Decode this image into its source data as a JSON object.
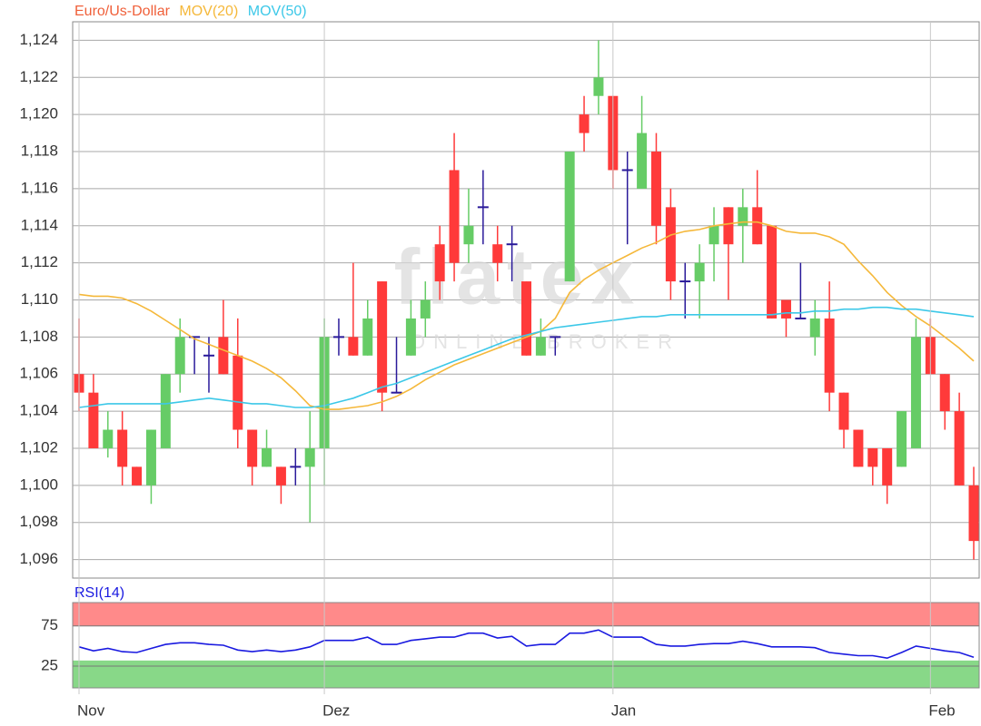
{
  "chart_data": [
    {
      "type": "candlestick",
      "watermark": {
        "title": "flatex",
        "subtitle": "ONLINE BROKER"
      },
      "categories": [
        "Nov",
        null,
        null,
        null,
        null,
        null,
        null,
        null,
        null,
        null,
        null,
        null,
        null,
        null,
        null,
        null,
        null,
        "Dez",
        null,
        null,
        null,
        null,
        null,
        null,
        null,
        null,
        null,
        null,
        null,
        null,
        null,
        null,
        null,
        null,
        null,
        null,
        null,
        "Jan",
        null,
        null,
        null,
        null,
        null,
        null,
        null,
        null,
        null,
        null,
        null,
        null,
        null,
        null,
        null,
        null,
        null,
        null,
        null,
        null,
        null,
        "Feb",
        null,
        null,
        null
      ],
      "ylim": [
        1.095,
        1.125
      ],
      "yticks": [
        {
          "value": 1.096,
          "label": "1,096"
        },
        {
          "value": 1.098,
          "label": "1,098"
        },
        {
          "value": 1.1,
          "label": "1,100"
        },
        {
          "value": 1.102,
          "label": "1,102"
        },
        {
          "value": 1.104,
          "label": "1,104"
        },
        {
          "value": 1.106,
          "label": "1,106"
        },
        {
          "value": 1.108,
          "label": "1,108"
        },
        {
          "value": 1.11,
          "label": "1,110"
        },
        {
          "value": 1.112,
          "label": "1,112"
        },
        {
          "value": 1.114,
          "label": "1,114"
        },
        {
          "value": 1.116,
          "label": "1,116"
        },
        {
          "value": 1.118,
          "label": "1,118"
        },
        {
          "value": 1.12,
          "label": "1,120"
        },
        {
          "value": 1.122,
          "label": "1,122"
        },
        {
          "value": 1.124,
          "label": "1,124"
        }
      ],
      "grid": true,
      "series": [
        {
          "name": "Euro/Us-Dollar",
          "type": "candlestick",
          "color": "#f0603a",
          "up_color": "#66cc66",
          "down_color": "#ff3a3a",
          "flat_color": "#2a1a9a",
          "open": [
            1.106,
            1.105,
            1.102,
            1.103,
            1.101,
            1.1,
            1.102,
            1.106,
            1.108,
            1.107,
            1.108,
            1.107,
            1.103,
            1.101,
            1.101,
            1.101,
            1.101,
            1.102,
            1.108,
            1.108,
            1.107,
            1.111,
            1.105,
            1.107,
            1.109,
            1.113,
            1.117,
            1.113,
            1.115,
            1.113,
            1.113,
            1.111,
            1.107,
            1.108,
            1.111,
            1.12,
            1.121,
            1.121,
            1.117,
            1.116,
            1.118,
            1.115,
            1.111,
            1.111,
            1.113,
            1.115,
            1.114,
            1.115,
            1.114,
            1.11,
            1.109,
            1.108,
            1.109,
            1.105,
            1.103,
            1.102,
            1.102,
            1.101,
            1.102,
            1.108,
            1.106,
            1.104,
            1.1
          ],
          "high": [
            1.109,
            1.106,
            1.104,
            1.104,
            1.101,
            1.103,
            1.106,
            1.109,
            1.108,
            1.108,
            1.11,
            1.109,
            1.103,
            1.103,
            1.101,
            1.102,
            1.104,
            1.109,
            1.109,
            1.112,
            1.11,
            1.111,
            1.108,
            1.11,
            1.111,
            1.114,
            1.119,
            1.116,
            1.117,
            1.114,
            1.114,
            1.111,
            1.109,
            1.108,
            1.118,
            1.121,
            1.124,
            1.121,
            1.118,
            1.121,
            1.119,
            1.116,
            1.112,
            1.113,
            1.115,
            1.115,
            1.116,
            1.117,
            1.114,
            1.11,
            1.112,
            1.11,
            1.111,
            1.105,
            1.103,
            1.102,
            1.102,
            1.104,
            1.109,
            1.109,
            1.106,
            1.105,
            1.101
          ],
          "low": [
            1.104,
            1.102,
            1.1015,
            1.1,
            1.1,
            1.099,
            1.102,
            1.105,
            1.106,
            1.105,
            1.106,
            1.102,
            1.1,
            1.101,
            1.099,
            1.1,
            1.098,
            1.1,
            1.107,
            1.107,
            1.107,
            1.104,
            1.105,
            1.107,
            1.108,
            1.11,
            1.111,
            1.112,
            1.113,
            1.111,
            1.111,
            1.107,
            1.107,
            1.107,
            1.111,
            1.118,
            1.12,
            1.116,
            1.113,
            1.116,
            1.113,
            1.11,
            1.109,
            1.109,
            1.111,
            1.11,
            1.112,
            1.113,
            1.109,
            1.108,
            1.109,
            1.107,
            1.104,
            1.102,
            1.101,
            1.1,
            1.099,
            1.101,
            1.102,
            1.106,
            1.103,
            1.1,
            1.096
          ],
          "close": [
            1.105,
            1.102,
            1.103,
            1.101,
            1.1,
            1.103,
            1.106,
            1.108,
            1.108,
            1.107,
            1.106,
            1.103,
            1.101,
            1.102,
            1.1,
            1.101,
            1.102,
            1.108,
            1.108,
            1.107,
            1.109,
            1.105,
            1.105,
            1.109,
            1.11,
            1.111,
            1.112,
            1.114,
            1.115,
            1.112,
            1.113,
            1.107,
            1.108,
            1.108,
            1.118,
            1.119,
            1.122,
            1.117,
            1.117,
            1.119,
            1.114,
            1.111,
            1.111,
            1.112,
            1.114,
            1.113,
            1.115,
            1.113,
            1.109,
            1.109,
            1.109,
            1.109,
            1.105,
            1.103,
            1.101,
            1.101,
            1.1,
            1.104,
            1.108,
            1.106,
            1.104,
            1.1,
            1.097
          ]
        },
        {
          "name": "MOV(20)",
          "type": "line",
          "color": "#f5b83a",
          "values": [
            1.1103,
            1.1102,
            1.1102,
            1.1101,
            1.1098,
            1.1094,
            1.1089,
            1.1084,
            1.1079,
            1.1076,
            1.1073,
            1.107,
            1.1067,
            1.1063,
            1.1058,
            1.1051,
            1.1043,
            1.1041,
            1.1041,
            1.1042,
            1.1043,
            1.1045,
            1.1048,
            1.1052,
            1.1057,
            1.1061,
            1.1065,
            1.1068,
            1.1071,
            1.1074,
            1.1077,
            1.108,
            1.1083,
            1.109,
            1.1104,
            1.1111,
            1.1116,
            1.112,
            1.1124,
            1.1128,
            1.1131,
            1.1135,
            1.1137,
            1.1138,
            1.114,
            1.1141,
            1.1142,
            1.1142,
            1.114,
            1.1137,
            1.1136,
            1.1136,
            1.1134,
            1.113,
            1.1121,
            1.1113,
            1.1104,
            1.1097,
            1.1091,
            1.1086,
            1.108,
            1.1074,
            1.1067
          ]
        },
        {
          "name": "MOV(50)",
          "type": "line",
          "color": "#3cc8e8",
          "values": [
            1.1042,
            1.1043,
            1.1044,
            1.1044,
            1.1044,
            1.1044,
            1.1044,
            1.1045,
            1.1046,
            1.1047,
            1.1046,
            1.1045,
            1.1044,
            1.1044,
            1.1043,
            1.1042,
            1.1042,
            1.1043,
            1.1045,
            1.1047,
            1.105,
            1.1053,
            1.1055,
            1.1058,
            1.1061,
            1.1064,
            1.1067,
            1.107,
            1.1073,
            1.1076,
            1.1079,
            1.1081,
            1.1083,
            1.1085,
            1.1086,
            1.1087,
            1.1088,
            1.1089,
            1.109,
            1.1091,
            1.1091,
            1.1092,
            1.1092,
            1.1092,
            1.1092,
            1.1092,
            1.1092,
            1.1092,
            1.1092,
            1.1093,
            1.1093,
            1.1094,
            1.1094,
            1.1095,
            1.1095,
            1.1096,
            1.1096,
            1.1095,
            1.1095,
            1.1094,
            1.1093,
            1.1092,
            1.1091
          ]
        }
      ]
    },
    {
      "type": "line",
      "title": "RSI(14)",
      "ylim": [
        -2,
        104
      ],
      "yticks": [
        25,
        75
      ],
      "bands": [
        {
          "from": 75,
          "to": 104,
          "color": "#ff8a8a"
        },
        {
          "from": -2,
          "to": 32,
          "color": "#88d888"
        }
      ],
      "series": [
        {
          "name": "RSI(14)",
          "color": "#1a1ae0",
          "values": [
            49,
            44,
            47,
            43,
            42,
            47,
            52,
            54,
            54,
            52,
            51,
            45,
            43,
            45,
            43,
            45,
            49,
            57,
            57,
            57,
            61,
            52,
            52,
            57,
            59,
            61,
            61,
            66,
            66,
            60,
            62,
            50,
            52,
            52,
            66,
            66,
            70,
            61,
            61,
            61,
            52,
            50,
            50,
            52,
            53,
            53,
            56,
            53,
            49,
            49,
            49,
            48,
            42,
            40,
            38,
            38,
            35,
            42,
            50,
            47,
            44,
            42,
            36
          ]
        }
      ]
    }
  ]
}
